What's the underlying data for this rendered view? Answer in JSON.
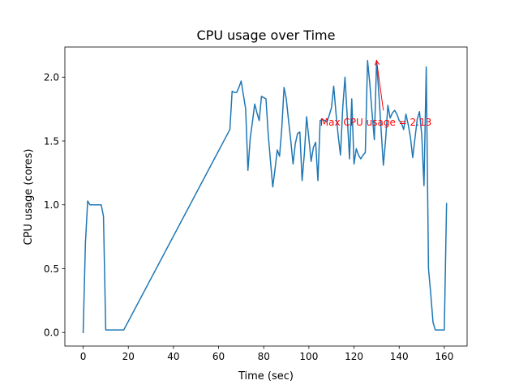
{
  "colors": {
    "line": "#1f77b4",
    "annotation": "#ff0000",
    "axes": "#000000",
    "background": "#ffffff"
  },
  "chart_data": {
    "type": "line",
    "title": "CPU usage over Time",
    "xlabel": "Time (sec)",
    "ylabel": "CPU usage (cores)",
    "xlim": [
      -8.1,
      170.1
    ],
    "ylim": [
      -0.1065,
      2.2365
    ],
    "xticks": [
      0,
      20,
      40,
      60,
      80,
      100,
      120,
      140,
      160
    ],
    "xtick_labels": [
      "0",
      "20",
      "40",
      "60",
      "80",
      "100",
      "120",
      "140",
      "160"
    ],
    "yticks": [
      0.0,
      0.5,
      1.0,
      1.5,
      2.0
    ],
    "ytick_labels": [
      "0.0",
      "0.5",
      "1.0",
      "1.5",
      "2.0"
    ],
    "grid": false,
    "series": [
      {
        "name": "CPU usage",
        "x": [
          0,
          1,
          2,
          3,
          4,
          5,
          6,
          7,
          8,
          9,
          10,
          11,
          14,
          18,
          65,
          66,
          67,
          68,
          69,
          70,
          71,
          72,
          73,
          74,
          75,
          76,
          77,
          78,
          79,
          80,
          81,
          82,
          83,
          84,
          85,
          86,
          87,
          88,
          89,
          90,
          91,
          92,
          93,
          94,
          95,
          96,
          97,
          98,
          99,
          100,
          101,
          102,
          103,
          104,
          105,
          106,
          107,
          108,
          109,
          110,
          111,
          112,
          113,
          114,
          115,
          116,
          117,
          118,
          119,
          120,
          121,
          122,
          123,
          124,
          125,
          126,
          127,
          128,
          129,
          130,
          131,
          132,
          133,
          134,
          135,
          136,
          137,
          138,
          139,
          140,
          141,
          142,
          143,
          144,
          145,
          146,
          147,
          148,
          149,
          150,
          151,
          152,
          153,
          154,
          155,
          156,
          157,
          158,
          159,
          160,
          161
        ],
        "values": [
          0.0,
          0.7,
          1.03,
          1.0,
          1.0,
          1.0,
          1.0,
          1.0,
          1.0,
          0.91,
          0.02,
          0.02,
          0.02,
          0.02,
          1.59,
          1.89,
          1.88,
          1.88,
          1.92,
          1.97,
          1.86,
          1.75,
          1.27,
          1.52,
          1.65,
          1.79,
          1.72,
          1.66,
          1.85,
          1.84,
          1.83,
          1.55,
          1.34,
          1.14,
          1.28,
          1.43,
          1.38,
          1.6,
          1.92,
          1.83,
          1.66,
          1.5,
          1.32,
          1.48,
          1.56,
          1.57,
          1.19,
          1.4,
          1.69,
          1.52,
          1.34,
          1.45,
          1.49,
          1.19,
          1.66,
          1.67,
          1.66,
          1.65,
          1.7,
          1.76,
          1.93,
          1.72,
          1.54,
          1.39,
          1.76,
          2.0,
          1.69,
          1.36,
          1.83,
          1.32,
          1.44,
          1.39,
          1.36,
          1.39,
          1.41,
          2.13,
          1.95,
          1.72,
          1.51,
          2.13,
          1.87,
          1.59,
          1.31,
          1.51,
          1.78,
          1.68,
          1.72,
          1.74,
          1.71,
          1.66,
          1.64,
          1.59,
          1.71,
          1.63,
          1.53,
          1.37,
          1.52,
          1.67,
          1.73,
          1.55,
          1.15,
          2.08,
          0.5,
          0.3,
          0.08,
          0.02,
          0.02,
          0.02,
          0.02,
          0.02,
          1.01
        ]
      }
    ],
    "annotation": {
      "text": "Max CPU usage = 2.13",
      "point": [
        130,
        2.13
      ],
      "text_position": [
        105,
        1.62
      ]
    }
  }
}
